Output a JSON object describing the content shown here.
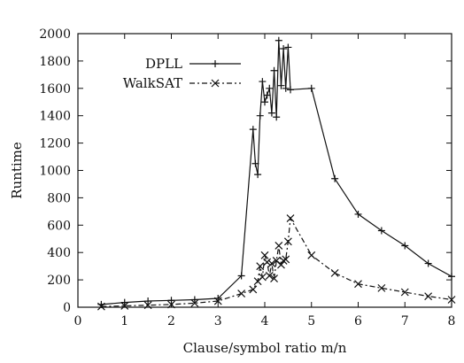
{
  "chart_data": {
    "type": "line",
    "title": "",
    "xlabel": "Clause/symbol ratio m/n",
    "ylabel": "Runtime",
    "xlim": [
      0,
      8
    ],
    "ylim": [
      0,
      2000
    ],
    "xticks": [
      "0",
      "1",
      "2",
      "3",
      "4",
      "5",
      "6",
      "7",
      "8"
    ],
    "yticks": [
      "0",
      "200",
      "400",
      "600",
      "800",
      "1000",
      "1200",
      "1400",
      "1600",
      "1800",
      "2000"
    ],
    "grid": false,
    "legend_position": "top-left",
    "series": [
      {
        "name": "DPLL",
        "style": "solid",
        "marker": "+",
        "color": "#111111",
        "x": [
          0.5,
          1.0,
          1.5,
          2.0,
          2.5,
          3.0,
          3.5,
          3.75,
          3.8,
          3.85,
          3.9,
          3.95,
          4.0,
          4.05,
          4.1,
          4.15,
          4.2,
          4.25,
          4.3,
          4.35,
          4.4,
          4.45,
          4.5,
          4.55,
          5.0,
          5.5,
          6.0,
          6.5,
          7.0,
          7.5,
          8.0
        ],
        "y": [
          20,
          35,
          45,
          50,
          55,
          65,
          230,
          1300,
          1050,
          970,
          1400,
          1650,
          1500,
          1550,
          1600,
          1420,
          1730,
          1390,
          1950,
          1620,
          1890,
          1600,
          1900,
          1590,
          1600,
          940,
          680,
          560,
          450,
          320,
          225
        ]
      },
      {
        "name": "WalkSAT",
        "style": "dash-dot",
        "marker": "x",
        "color": "#111111",
        "x": [
          0.5,
          1.0,
          1.5,
          2.0,
          2.5,
          3.0,
          3.5,
          3.75,
          3.85,
          3.9,
          3.95,
          4.0,
          4.05,
          4.1,
          4.15,
          4.2,
          4.25,
          4.3,
          4.35,
          4.4,
          4.45,
          4.5,
          4.55,
          5.0,
          5.5,
          6.0,
          6.5,
          7.0,
          7.5,
          8.0
        ],
        "y": [
          5,
          10,
          15,
          20,
          30,
          45,
          100,
          130,
          190,
          300,
          220,
          380,
          330,
          230,
          320,
          210,
          340,
          450,
          310,
          340,
          350,
          480,
          650,
          380,
          250,
          170,
          140,
          110,
          80,
          55
        ]
      }
    ]
  }
}
